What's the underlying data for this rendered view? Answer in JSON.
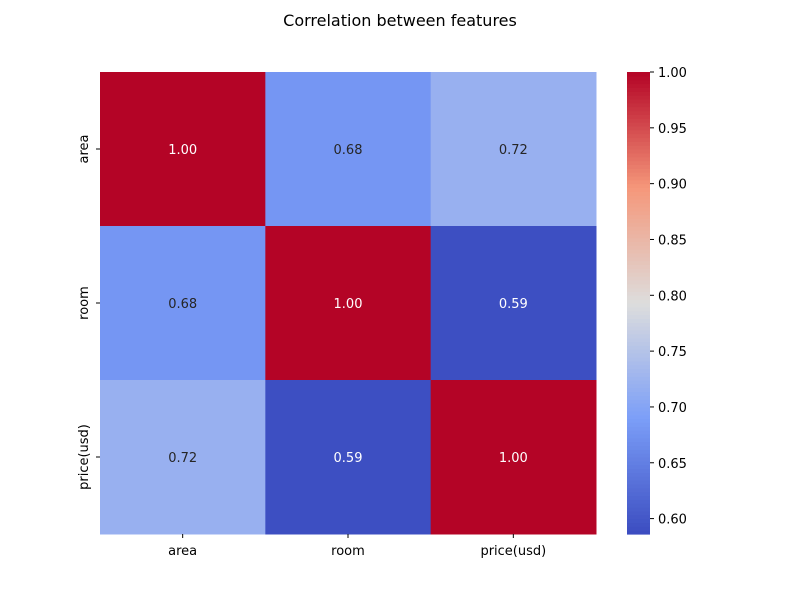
{
  "chart_data": {
    "type": "heatmap",
    "title": "Correlation between features",
    "x_categories": [
      "area",
      "room",
      "price(usd)"
    ],
    "y_categories": [
      "area",
      "room",
      "price(usd)"
    ],
    "values": [
      [
        1.0,
        0.68,
        0.72
      ],
      [
        0.68,
        1.0,
        0.59
      ],
      [
        0.72,
        0.59,
        1.0
      ]
    ],
    "annotation_format": "0.00",
    "colormap": "coolwarm",
    "colorbar": {
      "vmin": 0.5862,
      "vmax": 1.0,
      "ticks": [
        0.6,
        0.65,
        0.7,
        0.75,
        0.8,
        0.85,
        0.9,
        0.95,
        1.0
      ],
      "tick_labels": [
        "0.60",
        "0.65",
        "0.70",
        "0.75",
        "0.80",
        "0.85",
        "0.90",
        "0.95",
        "1.00"
      ]
    },
    "colors": {
      "low": "#3b4cc0",
      "mid": "#dddddd",
      "high": "#b40426"
    }
  }
}
